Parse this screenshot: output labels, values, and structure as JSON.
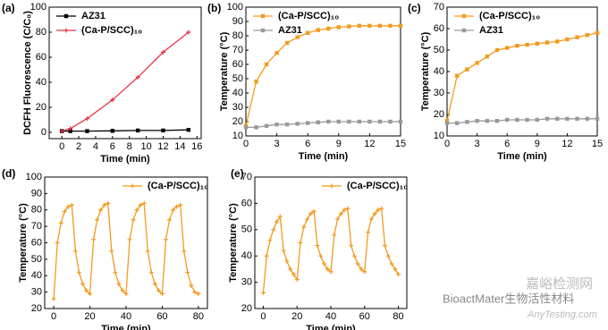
{
  "chart_data": [
    {
      "type": "line",
      "panel_label": "(a)",
      "xlabel": "Time (min)",
      "ylabel": "DCFH  Fluorescence (C/C₀)",
      "legend": "upper left",
      "xlim": [
        -1.5,
        16.5
      ],
      "xticks": [
        0,
        2,
        4,
        6,
        8,
        10,
        12,
        14,
        16
      ],
      "ylim": [
        -5,
        100
      ],
      "yticks": [
        0,
        20,
        40,
        60,
        80,
        100
      ],
      "x": [
        0,
        1,
        3,
        6,
        9,
        12,
        15
      ],
      "series": [
        {
          "name": "AZ31",
          "color": "#000000",
          "marker": "square",
          "values": [
            1,
            1,
            1,
            1.2,
            1.5,
            1.5,
            2
          ]
        },
        {
          "name": "(Ca-P/SCC)₁₀",
          "color": "#e8344a",
          "marker": "cross",
          "values": [
            1,
            3,
            11,
            26,
            44,
            64,
            80
          ]
        }
      ]
    },
    {
      "type": "line",
      "panel_label": "(b)",
      "xlabel": "Time (min)",
      "ylabel": "Temperature (°C)",
      "legend": "upper left",
      "xlim": [
        0,
        15
      ],
      "xticks": [
        0,
        3,
        6,
        9,
        12,
        15
      ],
      "ylim": [
        10,
        100
      ],
      "yticks": [
        10,
        20,
        30,
        40,
        50,
        60,
        70,
        80,
        90,
        100
      ],
      "x": [
        0,
        1,
        2,
        3,
        4,
        5,
        6,
        7,
        8,
        9,
        10,
        11,
        12,
        13,
        14,
        15
      ],
      "series": [
        {
          "name": "(Ca-P/SCC)₁₀",
          "color": "#f39a1e",
          "marker": "square",
          "values": [
            17,
            48,
            60,
            68,
            75,
            79,
            82,
            84,
            85,
            86,
            86.5,
            87,
            87,
            87,
            87,
            87
          ]
        },
        {
          "name": "AZ31",
          "color": "#999999",
          "marker": "square",
          "values": [
            16,
            16,
            17,
            18,
            18,
            18.5,
            19,
            19.5,
            20,
            20,
            20,
            20,
            20,
            20,
            20,
            20
          ]
        }
      ]
    },
    {
      "type": "line",
      "panel_label": "(c)",
      "xlabel": "Time (min)",
      "ylabel": "Temperature (°C)",
      "legend": "upper left",
      "xlim": [
        0,
        15
      ],
      "xticks": [
        0,
        3,
        6,
        9,
        12,
        15
      ],
      "ylim": [
        10,
        70
      ],
      "yticks": [
        10,
        20,
        30,
        40,
        50,
        60,
        70
      ],
      "x": [
        0,
        1,
        2,
        3,
        4,
        5,
        6,
        7,
        8,
        9,
        10,
        11,
        12,
        13,
        14,
        15
      ],
      "series": [
        {
          "name": "(Ca-P/SCC)₁₀",
          "color": "#f39a1e",
          "marker": "square",
          "values": [
            17,
            38,
            41,
            44,
            47,
            50,
            51,
            52,
            52.5,
            53,
            53.5,
            54,
            55,
            56,
            57,
            58
          ]
        },
        {
          "name": "AZ31",
          "color": "#999999",
          "marker": "square",
          "values": [
            16,
            16,
            16.5,
            17,
            17,
            17,
            17.5,
            17.5,
            17.5,
            17.5,
            18,
            18,
            18,
            18,
            18,
            18
          ]
        }
      ]
    },
    {
      "type": "line",
      "panel_label": "(d)",
      "xlabel": "Time (min)",
      "ylabel": "Temperature (°C)",
      "legend": "upper right",
      "xlim": [
        -5,
        85
      ],
      "xticks": [
        0,
        20,
        40,
        60,
        80
      ],
      "ylim": [
        20,
        100
      ],
      "yticks": [
        20,
        30,
        40,
        50,
        60,
        70,
        80,
        90,
        100
      ],
      "x": [
        0,
        2,
        4,
        6,
        8,
        10,
        12,
        14,
        16,
        18,
        20,
        22,
        24,
        26,
        28,
        30,
        32,
        34,
        36,
        38,
        40,
        42,
        44,
        46,
        48,
        50,
        52,
        54,
        56,
        58,
        60,
        62,
        64,
        66,
        68,
        70,
        72,
        74,
        76,
        78,
        80
      ],
      "series": [
        {
          "name": "(Ca-P/SCC)₁₀",
          "color": "#f39a1e",
          "marker": "cross",
          "values": [
            26,
            60,
            72,
            79,
            82,
            83,
            55,
            42,
            35,
            31,
            29,
            62,
            74,
            80,
            83,
            84,
            55,
            42,
            35,
            31,
            29,
            62,
            74,
            80,
            83,
            84,
            55,
            42,
            35,
            31,
            29,
            62,
            74,
            80,
            82,
            83,
            55,
            42,
            34,
            30,
            29
          ]
        }
      ]
    },
    {
      "type": "line",
      "panel_label": "(e)",
      "xlabel": "Time (min)",
      "ylabel": "Temperature (°C)",
      "legend": "upper right",
      "xlim": [
        -5,
        85
      ],
      "xticks": [
        0,
        20,
        40,
        60,
        80
      ],
      "ylim": [
        20,
        70
      ],
      "yticks": [
        20,
        30,
        40,
        50,
        60,
        70
      ],
      "x": [
        0,
        2,
        4,
        6,
        8,
        10,
        12,
        14,
        16,
        18,
        20,
        22,
        24,
        26,
        28,
        30,
        32,
        34,
        36,
        38,
        40,
        42,
        44,
        46,
        48,
        50,
        52,
        54,
        56,
        58,
        60,
        62,
        64,
        66,
        68,
        70,
        72,
        74,
        76,
        78,
        80
      ],
      "series": [
        {
          "name": "(Ca-P/SCC)₁₀",
          "color": "#f39a1e",
          "marker": "cross",
          "values": [
            26,
            40,
            46,
            50,
            53,
            55,
            42,
            38,
            35,
            33,
            31,
            45,
            51,
            54,
            56,
            57,
            44,
            40,
            37,
            35,
            34,
            48,
            54,
            56,
            57.5,
            58,
            44,
            40,
            37,
            35,
            34,
            49,
            54,
            56,
            57.5,
            58,
            44,
            40,
            37,
            35,
            33
          ]
        }
      ]
    }
  ],
  "watermark": {
    "account": "BioactMater生物活性材料",
    "site": "嘉峪检测网",
    "url": "AnyTesting.com"
  }
}
